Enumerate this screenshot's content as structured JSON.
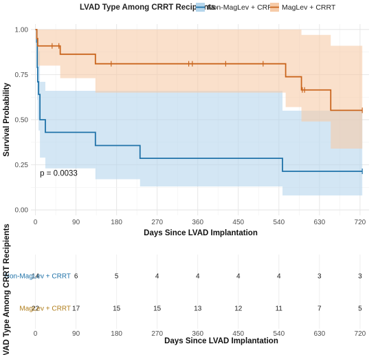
{
  "legend": {
    "title": "LVAD Type Among CRRT Recipients",
    "items": [
      {
        "label": "Non-MagLev + CRRT",
        "color": "#1f72a8",
        "fill": "#b5d6ec"
      },
      {
        "label": "MagLev + CRRT",
        "color": "#c9651d",
        "fill": "#f6cba8"
      }
    ]
  },
  "chart_data": [
    {
      "type": "line",
      "subtype": "kaplan-meier",
      "title": "",
      "xlabel": "Days Since LVAD Implantation",
      "ylabel": "Survival Probability",
      "xlim": [
        -10,
        740
      ],
      "ylim": [
        -0.03,
        1.03
      ],
      "xticks": [
        0,
        90,
        180,
        270,
        360,
        450,
        540,
        630,
        720
      ],
      "yticks": [
        0.0,
        0.25,
        0.5,
        0.75,
        1.0
      ],
      "ytick_labels": [
        "0.00",
        "0.25",
        "0.50",
        "0.75",
        "1.00"
      ],
      "grid": true,
      "legend_position": "top",
      "annotation": "p = 0.0033",
      "series": [
        {
          "name": "Non-MagLev + CRRT",
          "color": "#1f72a8",
          "steps": [
            [
              0,
              1.0
            ],
            [
              3,
              0.93
            ],
            [
              4,
              0.79
            ],
            [
              5,
              0.71
            ],
            [
              7,
              0.64
            ],
            [
              10,
              0.5
            ],
            [
              22,
              0.43
            ],
            [
              133,
              0.357
            ],
            [
              232,
              0.286
            ],
            [
              548,
              0.214
            ],
            [
              725,
              0.214
            ]
          ],
          "ci": [
            [
              0,
              1.0,
              1.0
            ],
            [
              3,
              0.81,
              1.0
            ],
            [
              4,
              0.61,
              1.0
            ],
            [
              5,
              0.5,
              0.93
            ],
            [
              7,
              0.44,
              0.88
            ],
            [
              10,
              0.29,
              0.71
            ],
            [
              22,
              0.23,
              0.66
            ],
            [
              133,
              0.17,
              0.66
            ],
            [
              232,
              0.13,
              0.66
            ],
            [
              548,
              0.08,
              0.55
            ],
            [
              725,
              0.08,
              0.55
            ]
          ],
          "censored": [
            725
          ]
        },
        {
          "name": "MagLev + CRRT",
          "color": "#c9651d",
          "steps": [
            [
              0,
              1.0
            ],
            [
              3,
              0.95
            ],
            [
              5,
              0.909
            ],
            [
              55,
              0.863
            ],
            [
              133,
              0.81
            ],
            [
              555,
              0.738
            ],
            [
              590,
              0.665
            ],
            [
              655,
              0.552
            ],
            [
              725,
              0.552
            ]
          ],
          "ci": [
            [
              0,
              1.0,
              1.0
            ],
            [
              3,
              0.87,
              1.0
            ],
            [
              5,
              0.8,
              1.0
            ],
            [
              55,
              0.73,
              1.0
            ],
            [
              133,
              0.65,
              1.0
            ],
            [
              555,
              0.57,
              1.0
            ],
            [
              590,
              0.49,
              0.97
            ],
            [
              655,
              0.34,
              0.91
            ],
            [
              725,
              0.34,
              0.91
            ]
          ],
          "censored": [
            37,
            52,
            168,
            340,
            348,
            422,
            505,
            592,
            597,
            725
          ]
        }
      ]
    },
    {
      "type": "table",
      "title": "",
      "xlabel": "Days Since LVAD Implantation",
      "ylabel": "LVAD Type Among CRRT Recipients",
      "columns": [
        "0",
        "90",
        "180",
        "270",
        "360",
        "450",
        "540",
        "630",
        "720"
      ],
      "rows": [
        {
          "name": "Non-MagLev + CRRT",
          "color": "#1f72a8",
          "values": [
            "14",
            "6",
            "5",
            "4",
            "4",
            "4",
            "4",
            "3",
            "3"
          ]
        },
        {
          "name": "MagLev + CRRT",
          "color": "#b07d1a",
          "values": [
            "22",
            "17",
            "15",
            "15",
            "13",
            "12",
            "11",
            "7",
            "5"
          ]
        }
      ]
    }
  ]
}
